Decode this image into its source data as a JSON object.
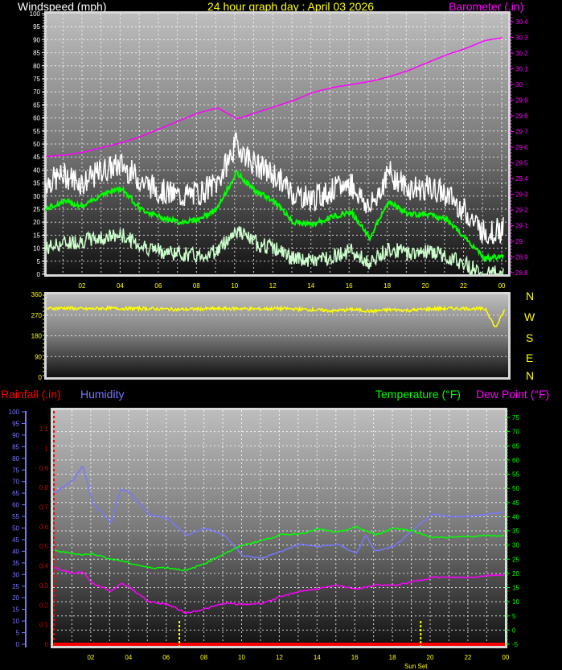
{
  "header": {
    "left_title": "Windspeed (mph)",
    "center_title": "24 hour graph day : April 03 2026",
    "right_title": "Barometer (.in)"
  },
  "lower_header": {
    "rainfall": "Rainfall (.in)",
    "humidity": "Humidity",
    "temperature": "Temperature (°F)",
    "dewpoint": "Dew Point (°F)"
  },
  "compass": [
    "N",
    "W",
    "S",
    "E",
    "N"
  ],
  "colors": {
    "title": "#ffff00",
    "wind_gust": "#ffffff",
    "wind_avg": "#00ff00",
    "wind_lull": "#ccffcc",
    "barometer": "#ff00ff",
    "direction": "#ffff00",
    "rainfall": "#ff0000",
    "humidity": "#7777ff",
    "temperature": "#00ff00",
    "dewpoint": "#ff00ff"
  },
  "chart_data": [
    {
      "type": "line",
      "title": "Windspeed (mph) / Barometer (.in)",
      "x_hours": [
        0,
        1,
        2,
        3,
        4,
        5,
        6,
        7,
        8,
        9,
        10,
        11,
        12,
        13,
        14,
        15,
        16,
        17,
        18,
        19,
        20,
        21,
        22,
        23,
        24
      ],
      "x_tick_labels": [
        "02",
        "04",
        "06",
        "08",
        "10",
        "12",
        "14",
        "16",
        "18",
        "20",
        "22",
        "00"
      ],
      "y_left": {
        "label": "Windspeed (mph)",
        "range": [
          0,
          100
        ],
        "ticks": [
          0,
          5,
          10,
          15,
          20,
          25,
          30,
          35,
          40,
          45,
          50,
          55,
          60,
          65,
          70,
          75,
          80,
          85,
          90,
          95,
          100
        ]
      },
      "y_right": {
        "label": "Barometer (.in)",
        "range": [
          28.8,
          30.45
        ],
        "ticks": [
          "28.8",
          "28.9",
          "29",
          "29.1",
          "29.2",
          "29.3",
          "29.4",
          "29.5",
          "29.6",
          "29.7",
          "29.8",
          "29.9",
          "30",
          "30.1",
          "30.2",
          "30.3",
          "30.4"
        ]
      },
      "grid": true,
      "series": [
        {
          "name": "gust",
          "axis": "left",
          "values": [
            33,
            36,
            33,
            38,
            40,
            34,
            30,
            28,
            29,
            33,
            48,
            40,
            36,
            29,
            27,
            30,
            33,
            23,
            37,
            31,
            31,
            29,
            22,
            14,
            15
          ]
        },
        {
          "name": "average",
          "axis": "left",
          "values": [
            25,
            28,
            26,
            31,
            33,
            25,
            22,
            20,
            21,
            25,
            39,
            32,
            28,
            20,
            19,
            22,
            24,
            14,
            28,
            23,
            23,
            21,
            14,
            6,
            7
          ]
        },
        {
          "name": "lull",
          "axis": "left",
          "values": [
            10,
            12,
            13,
            14,
            15,
            11,
            9,
            8,
            7,
            9,
            17,
            12,
            10,
            6,
            5,
            7,
            9,
            4,
            10,
            8,
            9,
            7,
            4,
            0,
            1
          ]
        },
        {
          "name": "barometer",
          "axis": "right",
          "values": [
            29.54,
            29.55,
            29.57,
            29.6,
            29.63,
            29.67,
            29.72,
            29.77,
            29.82,
            29.85,
            29.78,
            29.82,
            29.86,
            29.9,
            29.95,
            29.98,
            30.0,
            30.02,
            30.05,
            30.09,
            30.14,
            30.19,
            30.23,
            30.28,
            30.3
          ]
        }
      ]
    },
    {
      "type": "line",
      "title": "Wind direction",
      "x_hours": [
        0,
        1,
        2,
        3,
        4,
        5,
        6,
        7,
        8,
        9,
        10,
        11,
        12,
        13,
        14,
        15,
        16,
        17,
        18,
        19,
        20,
        21,
        22,
        23,
        23.5,
        24
      ],
      "y_left": {
        "range": [
          0,
          360
        ],
        "ticks": [
          0,
          90,
          180,
          270,
          360
        ]
      },
      "grid": true,
      "series": [
        {
          "name": "direction",
          "values": [
            300,
            302,
            298,
            301,
            300,
            300,
            298,
            296,
            298,
            299,
            300,
            298,
            300,
            298,
            294,
            290,
            296,
            288,
            295,
            292,
            298,
            300,
            300,
            298,
            215,
            295
          ]
        }
      ]
    },
    {
      "type": "line",
      "title": "Rainfall / Humidity / Temperature / Dew Point",
      "x_hours": [
        0,
        1,
        1.5,
        2,
        3,
        3.5,
        4,
        5,
        6,
        7,
        8,
        9,
        10,
        11,
        12,
        13,
        14,
        15,
        16,
        16.5,
        17,
        18,
        19,
        20,
        21,
        22,
        23,
        24
      ],
      "x_tick_labels": [
        "02",
        "04",
        "06",
        "08",
        "10",
        "12",
        "14",
        "16",
        "18",
        "20",
        "22",
        "00"
      ],
      "annotations": [
        {
          "label": "Sun Rise",
          "hour": 6.7,
          "printed": false
        },
        {
          "label": "Sun Set",
          "hour": 19.5
        }
      ],
      "y_humidity": {
        "label": "Humidity",
        "range": [
          0,
          100
        ],
        "ticks": [
          0,
          5,
          10,
          15,
          20,
          25,
          30,
          35,
          40,
          45,
          50,
          55,
          60,
          65,
          70,
          75,
          80,
          85,
          90,
          95,
          100
        ]
      },
      "y_rain": {
        "label": "Rainfall (.in)",
        "range": [
          0,
          1.1
        ],
        "ticks": [
          "0",
          "0.1",
          "0.2",
          "0.3",
          "0.4",
          "0.5",
          "0.6",
          "0.7",
          "0.8",
          "0.9",
          "1",
          "1.1"
        ]
      },
      "y_temp": {
        "label": "Temperature (°F)",
        "range": [
          -5,
          75
        ],
        "ticks": [
          -5,
          0,
          5,
          10,
          15,
          20,
          25,
          30,
          35,
          40,
          45,
          50,
          55,
          60,
          65,
          70,
          75
        ]
      },
      "grid": true,
      "series": [
        {
          "name": "Humidity",
          "axis": "humidity",
          "values": [
            65,
            71,
            77,
            61,
            52,
            67,
            65,
            56,
            54,
            47,
            50,
            47,
            38,
            37,
            40,
            43,
            42,
            43,
            39,
            47,
            40,
            42,
            49,
            56,
            55,
            55,
            56,
            57
          ]
        },
        {
          "name": "Temperature (°F)",
          "axis": "temp",
          "values": [
            28,
            27,
            26.5,
            27,
            25,
            24.5,
            23.6,
            22,
            22,
            21,
            23.6,
            27,
            30,
            31.6,
            33.6,
            34,
            35.6,
            34.4,
            36.4,
            35,
            33.6,
            36,
            35,
            32.7,
            32.7,
            33,
            33.3,
            33.3
          ]
        },
        {
          "name": "Dew Point (°F)",
          "axis": "temp",
          "values": [
            22,
            20,
            20.5,
            16.5,
            13.7,
            16.5,
            15,
            10,
            9,
            6,
            7.5,
            9.5,
            9,
            9.5,
            11.7,
            13.7,
            14.6,
            15.7,
            14.6,
            15,
            16,
            15.7,
            17,
            18.6,
            18.6,
            18.6,
            19.3,
            19.6
          ]
        },
        {
          "name": "Rainfall (.in)",
          "axis": "rain",
          "values": [
            0,
            0,
            0,
            0,
            0,
            0,
            0,
            0,
            0,
            0,
            0,
            0,
            0,
            0,
            0,
            0,
            0,
            0,
            0,
            0,
            0,
            0,
            0,
            0,
            0,
            0,
            0,
            0
          ]
        }
      ]
    }
  ]
}
